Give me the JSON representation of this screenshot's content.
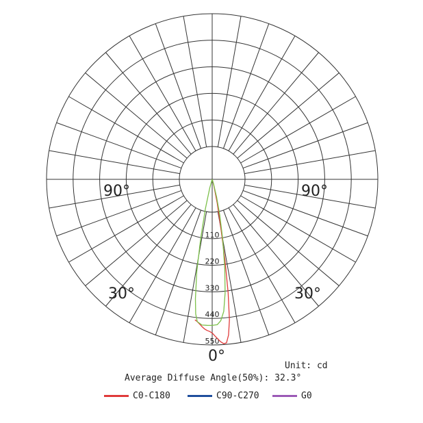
{
  "chart_data": {
    "type": "polar",
    "angle_labels": {
      "left_90": "90°",
      "right_90": "90°",
      "left_30": "30°",
      "right_30": "30°",
      "bottom_0": "0°"
    },
    "radial_ticks": [
      "110",
      "220",
      "330",
      "440",
      "550"
    ],
    "radial_tick_values": [
      110,
      220,
      330,
      440,
      550
    ],
    "radial_max": 550,
    "grid": true,
    "unit_text": "Unit: cd",
    "average_angle_text": "Average Diffuse Angle(50%): 32.3°",
    "legend_placement": "bottom",
    "series": [
      {
        "name": "C0-C180",
        "color": "#e03a3a",
        "points": [
          [
            -7,
            470
          ],
          [
            -6,
            475
          ],
          [
            -5,
            482
          ],
          [
            -4,
            490
          ],
          [
            -3,
            497
          ],
          [
            -2,
            502
          ],
          [
            -1,
            505
          ],
          [
            0,
            510
          ],
          [
            1,
            520
          ],
          [
            2,
            530
          ],
          [
            3,
            540
          ],
          [
            4,
            547
          ],
          [
            5,
            545
          ],
          [
            6,
            520
          ],
          [
            7,
            470
          ],
          [
            8,
            380
          ],
          [
            9,
            270
          ],
          [
            10,
            170
          ],
          [
            12,
            80
          ],
          [
            15,
            20
          ],
          [
            20,
            0
          ]
        ]
      },
      {
        "name": "C90-C270",
        "color": "#1f4e9c",
        "points": []
      },
      {
        "name": "G0",
        "color": "#9b59b6",
        "points": []
      },
      {
        "name": "",
        "color": "#7cc04a",
        "points": [
          [
            -20,
            0
          ],
          [
            -16,
            30
          ],
          [
            -13,
            100
          ],
          [
            -11,
            200
          ],
          [
            -9.5,
            310
          ],
          [
            -8,
            400
          ],
          [
            -7,
            450
          ],
          [
            -6,
            475
          ],
          [
            -4,
            485
          ],
          [
            -2,
            485
          ],
          [
            0,
            485
          ],
          [
            2,
            483
          ],
          [
            3.5,
            470
          ],
          [
            5,
            440
          ],
          [
            6.5,
            380
          ],
          [
            8,
            300
          ],
          [
            10,
            200
          ],
          [
            12,
            120
          ],
          [
            14,
            60
          ],
          [
            17,
            15
          ],
          [
            20,
            0
          ]
        ]
      }
    ]
  }
}
